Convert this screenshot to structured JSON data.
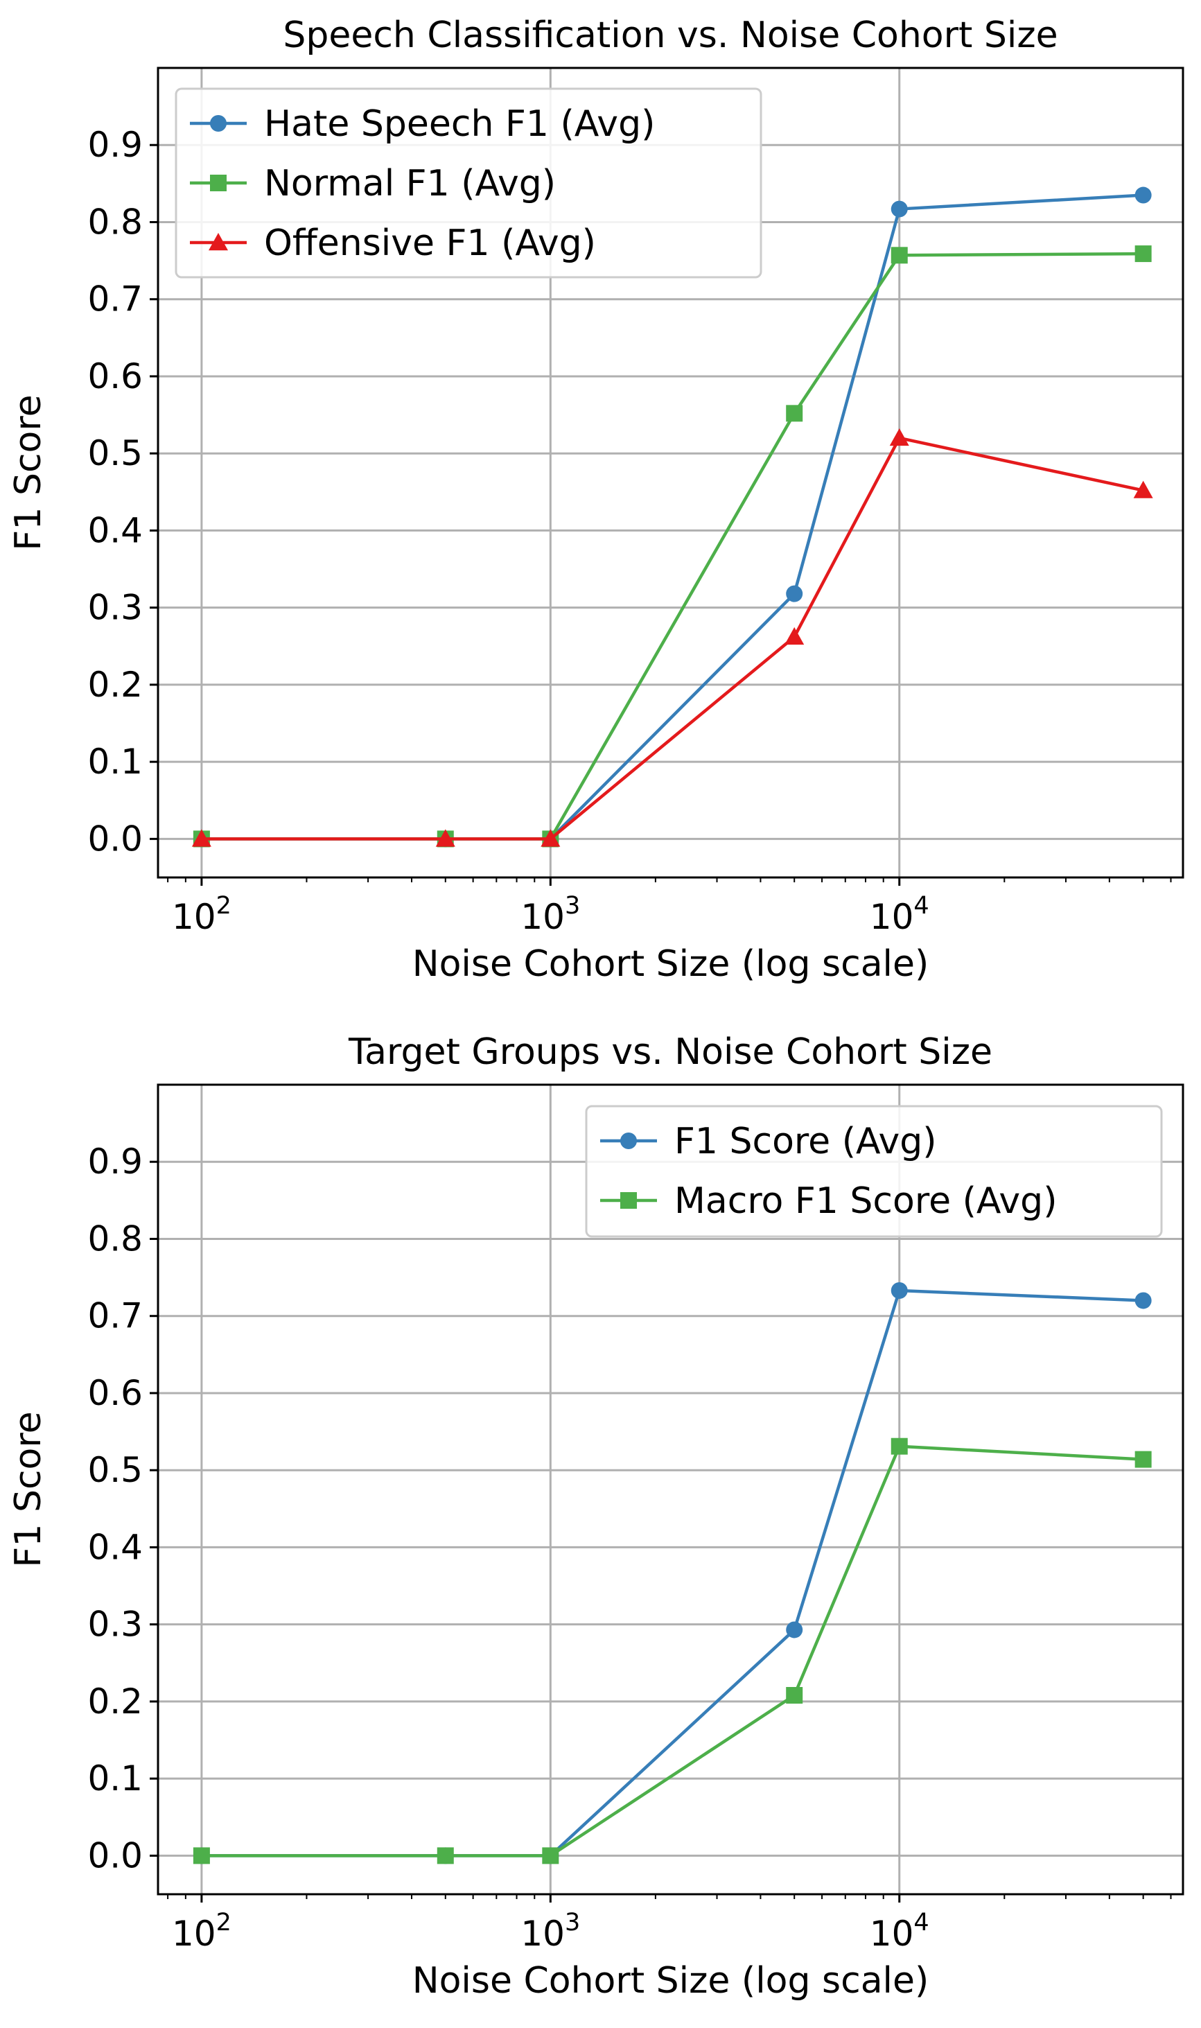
{
  "chart_data": [
    {
      "type": "line",
      "title": "Speech Classification vs. Noise Cohort Size",
      "xlabel": "Noise Cohort Size (log scale)",
      "ylabel": "F1 Score",
      "xscale": "log",
      "xlim": [
        75,
        65000
      ],
      "ylim": [
        -0.05,
        1.0
      ],
      "x_ticks": [
        {
          "base": "10",
          "exp": "2"
        },
        {
          "base": "10",
          "exp": "3"
        },
        {
          "base": "10",
          "exp": "4"
        }
      ],
      "x_tick_values": [
        100,
        1000,
        10000
      ],
      "y_ticks": [
        "0.0",
        "0.1",
        "0.2",
        "0.3",
        "0.4",
        "0.5",
        "0.6",
        "0.7",
        "0.8",
        "0.9"
      ],
      "grid": true,
      "legend_position": "upper-left",
      "x": [
        100,
        500,
        1000,
        5000,
        10000,
        50000
      ],
      "series": [
        {
          "name": "Hate Speech F1 (Avg)",
          "color": "#377eb8",
          "marker": "circle",
          "values": [
            0.0,
            0.0,
            0.0,
            0.318,
            0.817,
            0.835
          ]
        },
        {
          "name": "Normal F1 (Avg)",
          "color": "#4daf4a",
          "marker": "square",
          "values": [
            0.0,
            0.0,
            0.0,
            0.552,
            0.757,
            0.759
          ]
        },
        {
          "name": "Offensive F1 (Avg)",
          "color": "#e41a1c",
          "marker": "triangle",
          "values": [
            0.0,
            0.0,
            0.0,
            0.262,
            0.52,
            0.452
          ]
        }
      ]
    },
    {
      "type": "line",
      "title": "Target Groups vs. Noise Cohort Size",
      "xlabel": "Noise Cohort Size (log scale)",
      "ylabel": "F1 Score",
      "xscale": "log",
      "xlim": [
        75,
        65000
      ],
      "ylim": [
        -0.05,
        1.0
      ],
      "x_ticks": [
        {
          "base": "10",
          "exp": "2"
        },
        {
          "base": "10",
          "exp": "3"
        },
        {
          "base": "10",
          "exp": "4"
        }
      ],
      "x_tick_values": [
        100,
        1000,
        10000
      ],
      "y_ticks": [
        "0.0",
        "0.1",
        "0.2",
        "0.3",
        "0.4",
        "0.5",
        "0.6",
        "0.7",
        "0.8",
        "0.9"
      ],
      "grid": true,
      "legend_position": "upper-right",
      "x": [
        100,
        500,
        1000,
        5000,
        10000,
        50000
      ],
      "series": [
        {
          "name": "F1 Score (Avg)",
          "color": "#377eb8",
          "marker": "circle",
          "values": [
            0.0,
            0.0,
            0.0,
            0.293,
            0.733,
            0.72
          ]
        },
        {
          "name": "Macro F1 Score (Avg)",
          "color": "#4daf4a",
          "marker": "square",
          "values": [
            0.0,
            0.0,
            0.0,
            0.208,
            0.531,
            0.514
          ]
        }
      ]
    }
  ]
}
